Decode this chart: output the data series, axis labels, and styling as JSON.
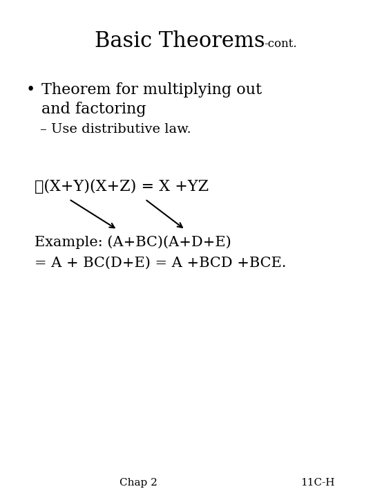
{
  "title_main": "Basic Theorems",
  "title_suffix": "-cont.",
  "bullet_text_line1": "Theorem for multiplying out",
  "bullet_text_line2": "and factoring",
  "sub_bullet": "– Use distributive law.",
  "checkmark_formula": "✓(X+Y)(X+Z) = X +YZ",
  "example_line1": "Example: (A+BC)(A+D+E)",
  "example_line2": "= A + BC(D+E) = A +BCD +BCE.",
  "footer_left": "Chap 2",
  "footer_right": "11C-H",
  "bg_color": "#ffffff",
  "text_color": "#000000",
  "title_fontsize": 22,
  "title_suffix_fontsize": 12,
  "bullet_fontsize": 16,
  "sub_fontsize": 14,
  "formula_fontsize": 16,
  "example_fontsize": 15,
  "footer_fontsize": 11
}
